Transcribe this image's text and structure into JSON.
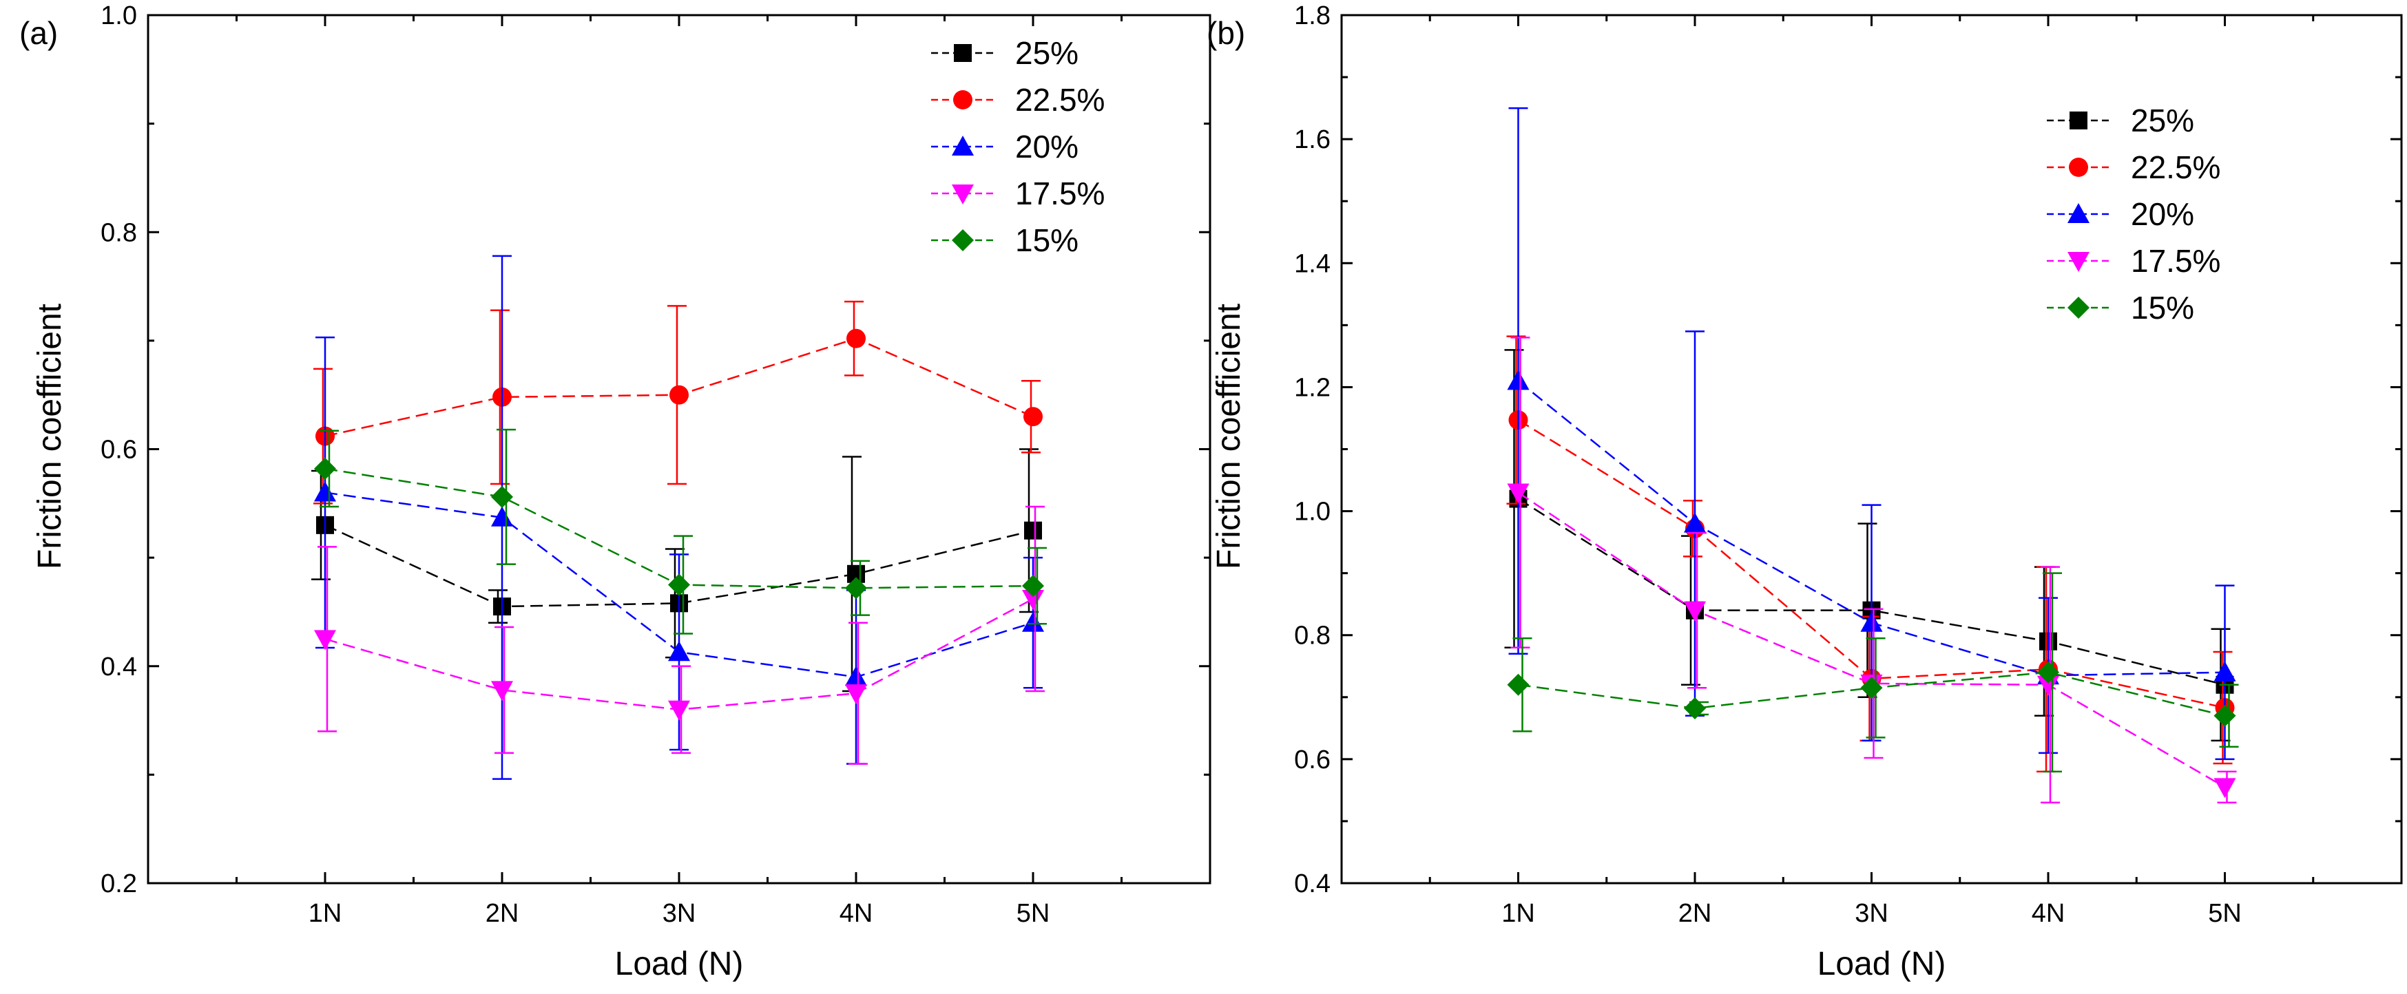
{
  "chart_data": [
    {
      "type": "line",
      "panel_label": "(a)",
      "title": "",
      "xlabel": "Load (N)",
      "ylabel": "Friction coefficient",
      "categories": [
        "1N",
        "2N",
        "3N",
        "4N",
        "5N"
      ],
      "ylim": [
        0.2,
        1.0
      ],
      "yticks": [
        "0.2",
        "0.4",
        "0.6",
        "0.8",
        "1.0"
      ],
      "grid": false,
      "legend_position": "top-right",
      "series": [
        {
          "name": "25%",
          "color": "#000000",
          "marker": "square",
          "values": [
            0.53,
            0.455,
            0.458,
            0.485,
            0.525
          ],
          "errors": [
            0.05,
            0.015,
            0.05,
            0.108,
            0.075
          ]
        },
        {
          "name": "22.5%",
          "color": "#ff0000",
          "marker": "circle",
          "values": [
            0.612,
            0.648,
            0.65,
            0.702,
            0.63
          ],
          "errors": [
            0.062,
            0.08,
            0.082,
            0.034,
            0.033
          ]
        },
        {
          "name": "20%",
          "color": "#0000ff",
          "marker": "triangle-up",
          "values": [
            0.56,
            0.537,
            0.413,
            0.39,
            0.44
          ],
          "errors": [
            0.143,
            0.241,
            0.09,
            0.08,
            0.06
          ]
        },
        {
          "name": "17.5%",
          "color": "#ff00ff",
          "marker": "triangle-down",
          "values": [
            0.425,
            0.378,
            0.36,
            0.375,
            0.462
          ],
          "errors": [
            0.085,
            0.058,
            0.04,
            0.065,
            0.085
          ]
        },
        {
          "name": "15%",
          "color": "#008000",
          "marker": "diamond",
          "values": [
            0.582,
            0.556,
            0.475,
            0.472,
            0.474
          ],
          "errors": [
            0.035,
            0.062,
            0.045,
            0.025,
            0.035
          ]
        }
      ]
    },
    {
      "type": "line",
      "panel_label": "(b)",
      "title": "",
      "xlabel": "Load (N)",
      "ylabel": "Friction coefficient",
      "categories": [
        "1N",
        "2N",
        "3N",
        "4N",
        "5N"
      ],
      "ylim": [
        0.4,
        1.8
      ],
      "yticks": [
        "0.4",
        "0.6",
        "0.8",
        "1.0",
        "1.2",
        "1.4",
        "1.6",
        "1.8"
      ],
      "grid": false,
      "legend_position": "top-right",
      "series": [
        {
          "name": "25%",
          "color": "#000000",
          "marker": "square",
          "values": [
            1.02,
            0.84,
            0.84,
            0.79,
            0.72
          ],
          "errors": [
            0.24,
            0.12,
            0.14,
            0.12,
            0.09
          ]
        },
        {
          "name": "22.5%",
          "color": "#ff0000",
          "marker": "circle",
          "values": [
            1.147,
            0.972,
            0.73,
            0.745,
            0.683
          ],
          "errors": [
            0.135,
            0.045,
            0.1,
            0.165,
            0.09
          ]
        },
        {
          "name": "20%",
          "color": "#0000ff",
          "marker": "triangle-up",
          "values": [
            1.21,
            0.98,
            0.82,
            0.735,
            0.74
          ],
          "errors": [
            0.44,
            0.31,
            0.19,
            0.125,
            0.14
          ]
        },
        {
          "name": "17.5%",
          "color": "#ff00ff",
          "marker": "triangle-down",
          "values": [
            1.03,
            0.84,
            0.722,
            0.72,
            0.555
          ],
          "errors": [
            0.25,
            0.125,
            0.12,
            0.19,
            0.025
          ]
        },
        {
          "name": "15%",
          "color": "#008000",
          "marker": "diamond",
          "values": [
            0.72,
            0.682,
            0.715,
            0.74,
            0.67
          ],
          "errors": [
            0.075,
            0.01,
            0.08,
            0.16,
            0.05
          ]
        }
      ]
    }
  ]
}
